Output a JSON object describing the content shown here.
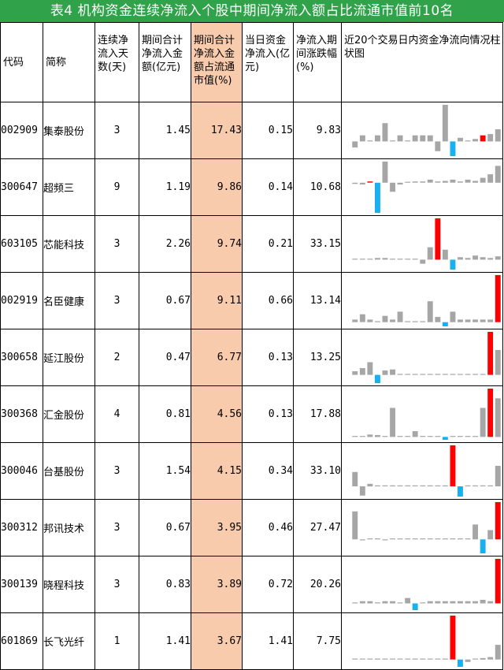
{
  "title": "表4 机构资金连续净流入个股中期间净流入额占比流通市值前10名",
  "colors": {
    "title_bg": "#2fa24a",
    "highlight": "#f8cbad",
    "positive": "#ff0000",
    "negative": "#1ab0f0",
    "neutral": "#a6a6a6"
  },
  "headers": {
    "code": "代码",
    "name": "简称",
    "days": "连续净流入天数(天)",
    "amount": "期间合计净流入金额(亿元)",
    "ratio": "期间合计净流入金额占流通市值(%)",
    "today": "当日资金净流入(亿元)",
    "change": "净流入期间涨跌幅(%)",
    "spark": "近20个交易日内资金净流向情况柱状图"
  },
  "rows": [
    {
      "code": "002909",
      "name": "集泰股份",
      "days": "3",
      "amount": "1.45",
      "ratio": "17.43",
      "today": "0.15",
      "change": "9.83"
    },
    {
      "code": "300647",
      "name": "超频三",
      "days": "9",
      "amount": "1.19",
      "ratio": "9.86",
      "today": "0.14",
      "change": "10.68"
    },
    {
      "code": "603105",
      "name": "芯能科技",
      "days": "3",
      "amount": "2.26",
      "ratio": "9.74",
      "today": "0.21",
      "change": "33.15"
    },
    {
      "code": "002919",
      "name": "名臣健康",
      "days": "3",
      "amount": "0.67",
      "ratio": "9.11",
      "today": "0.66",
      "change": "13.14"
    },
    {
      "code": "300658",
      "name": "延江股份",
      "days": "2",
      "amount": "0.47",
      "ratio": "6.77",
      "today": "0.13",
      "change": "13.25"
    },
    {
      "code": "300368",
      "name": "汇金股份",
      "days": "4",
      "amount": "0.81",
      "ratio": "4.56",
      "today": "0.13",
      "change": "17.88"
    },
    {
      "code": "300046",
      "name": "台基股份",
      "days": "3",
      "amount": "1.54",
      "ratio": "4.15",
      "today": "0.34",
      "change": "33.10"
    },
    {
      "code": "300312",
      "name": "邦讯技术",
      "days": "3",
      "amount": "0.67",
      "ratio": "3.95",
      "today": "0.46",
      "change": "27.47"
    },
    {
      "code": "300139",
      "name": "晓程科技",
      "days": "3",
      "amount": "0.83",
      "ratio": "3.89",
      "today": "0.72",
      "change": "20.26"
    },
    {
      "code": "601869",
      "name": "长飞光纤",
      "days": "1",
      "amount": "1.41",
      "ratio": "3.67",
      "today": "1.41",
      "change": "7.75"
    }
  ],
  "chart_data": [
    {
      "type": "bar",
      "values": [
        -0.05,
        0.05,
        0.0,
        0.05,
        0.15,
        0.0,
        0.05,
        0.0,
        0.05,
        0.05,
        0.05,
        -0.08,
        0.3,
        -0.12,
        0.03,
        0.0,
        0.02,
        0.05,
        0.06,
        0.1
      ],
      "highlight": [
        null,
        null,
        null,
        null,
        null,
        null,
        null,
        null,
        null,
        null,
        null,
        null,
        null,
        "negative",
        null,
        null,
        null,
        "positive",
        null,
        null
      ]
    },
    {
      "type": "bar",
      "values": [
        -0.02,
        -0.03,
        0.02,
        -0.5,
        0.35,
        -0.15,
        -0.03,
        0.0,
        0.02,
        0.02,
        0.05,
        0.02,
        0.03,
        0.05,
        0.02,
        0.05,
        0.03,
        0.08,
        0.14,
        0.28
      ],
      "highlight": [
        null,
        null,
        "positive",
        "negative",
        null,
        null,
        null,
        null,
        null,
        null,
        null,
        null,
        null,
        null,
        null,
        null,
        null,
        null,
        null,
        null
      ]
    },
    {
      "type": "bar",
      "values": [
        0.0,
        0.0,
        0.0,
        0.02,
        0.02,
        0.0,
        0.0,
        0.0,
        0.0,
        -0.05,
        0.15,
        0.5,
        0.12,
        -0.12,
        0.03,
        0.02,
        0.05,
        0.03,
        0.02,
        0.04
      ],
      "highlight": [
        null,
        null,
        null,
        null,
        null,
        null,
        null,
        null,
        null,
        null,
        null,
        "positive",
        null,
        "negative",
        null,
        null,
        null,
        null,
        null,
        null
      ]
    },
    {
      "type": "bar",
      "values": [
        0.05,
        0.15,
        0.05,
        0.0,
        0.12,
        0.05,
        0.2,
        0.0,
        0.0,
        0.0,
        0.4,
        0.1,
        -0.08,
        0.2,
        0.05,
        0.05,
        0.05,
        0.05,
        0.05,
        0.9
      ],
      "highlight": [
        null,
        null,
        null,
        null,
        null,
        null,
        null,
        null,
        null,
        null,
        null,
        null,
        "negative",
        null,
        null,
        null,
        null,
        null,
        null,
        "positive"
      ]
    },
    {
      "type": "bar",
      "values": [
        0.08,
        0.15,
        0.28,
        -0.18,
        0.1,
        0.12,
        0.0,
        0.0,
        0.0,
        0.0,
        0.0,
        0.0,
        0.0,
        0.0,
        0.0,
        0.0,
        0.0,
        0.0,
        0.95,
        0.55
      ],
      "highlight": [
        null,
        null,
        null,
        "negative",
        null,
        null,
        null,
        null,
        null,
        null,
        null,
        null,
        null,
        null,
        null,
        null,
        null,
        null,
        "positive",
        null
      ]
    },
    {
      "type": "bar",
      "values": [
        0.0,
        0.02,
        0.05,
        0.04,
        0.0,
        0.6,
        0.0,
        0.0,
        0.12,
        0.0,
        0.0,
        0.02,
        -0.06,
        0.0,
        0.0,
        0.0,
        0.0,
        0.6,
        1.0,
        0.8
      ],
      "highlight": [
        null,
        null,
        null,
        null,
        null,
        null,
        null,
        null,
        null,
        null,
        null,
        null,
        "negative",
        null,
        null,
        null,
        null,
        null,
        "positive",
        null
      ]
    },
    {
      "type": "bar",
      "values": [
        0.28,
        -0.18,
        0.05,
        0.0,
        0.0,
        0.0,
        0.0,
        0.0,
        0.0,
        0.0,
        0.0,
        0.0,
        0.0,
        0.8,
        -0.2,
        0.0,
        0.0,
        0.0,
        0.0,
        0.4
      ],
      "highlight": [
        null,
        null,
        null,
        null,
        null,
        null,
        null,
        null,
        null,
        null,
        null,
        null,
        null,
        "positive",
        "negative",
        null,
        null,
        null,
        null,
        null
      ]
    },
    {
      "type": "bar",
      "values": [
        0.6,
        -0.02,
        0.0,
        0.0,
        -0.02,
        0.0,
        0.0,
        0.0,
        0.0,
        0.0,
        0.0,
        0.0,
        0.0,
        0.0,
        0.0,
        0.0,
        0.32,
        -0.3,
        0.2,
        0.8
      ],
      "highlight": [
        null,
        null,
        null,
        null,
        null,
        null,
        null,
        null,
        null,
        null,
        null,
        null,
        null,
        null,
        null,
        null,
        null,
        "negative",
        null,
        "positive"
      ]
    },
    {
      "type": "bar",
      "values": [
        0.0,
        0.05,
        0.05,
        0.0,
        0.05,
        0.05,
        0.0,
        0.12,
        -0.15,
        0.0,
        0.05,
        0.05,
        0.05,
        0.05,
        0.05,
        0.05,
        0.05,
        0.08,
        0.05,
        1.0
      ],
      "highlight": [
        null,
        null,
        null,
        null,
        null,
        null,
        null,
        null,
        "negative",
        null,
        null,
        null,
        null,
        null,
        null,
        null,
        null,
        null,
        null,
        "positive"
      ]
    },
    {
      "type": "bar",
      "values": [
        0.0,
        0.0,
        0.0,
        0.0,
        0.0,
        0.0,
        0.0,
        0.0,
        0.0,
        0.0,
        0.0,
        0.02,
        0.0,
        0.9,
        -0.15,
        -0.05,
        0.0,
        0.03,
        0.05,
        0.3
      ],
      "highlight": [
        null,
        null,
        null,
        null,
        null,
        null,
        null,
        null,
        null,
        null,
        null,
        null,
        null,
        "positive",
        "negative",
        null,
        null,
        null,
        null,
        null
      ]
    }
  ]
}
